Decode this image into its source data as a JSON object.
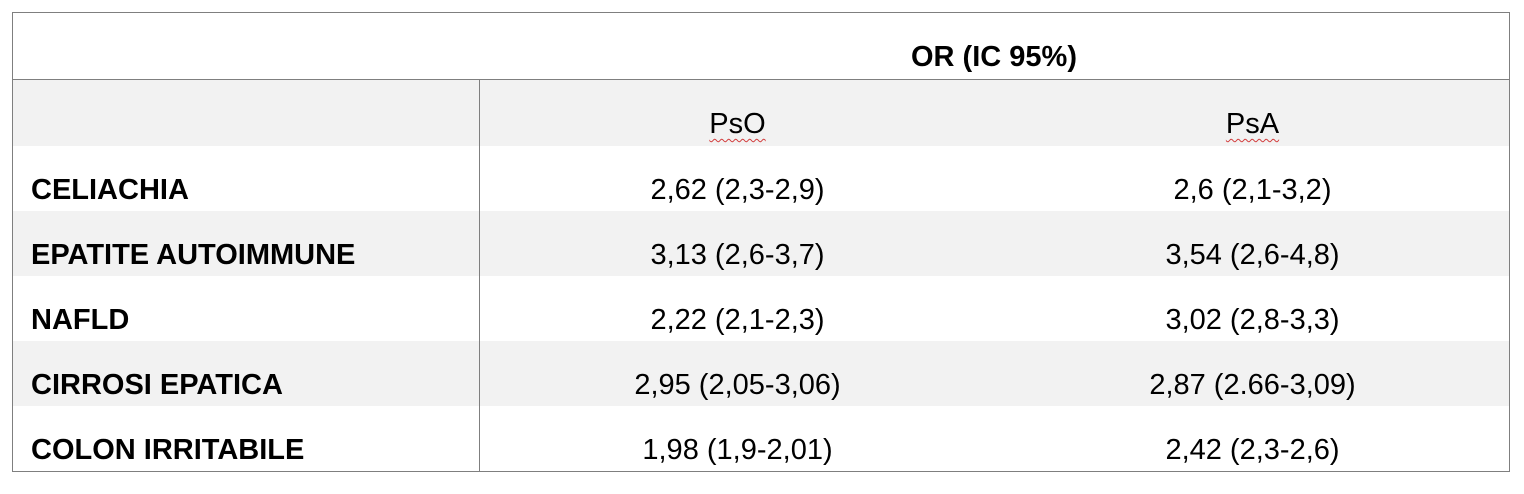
{
  "table": {
    "header": "OR (IC 95%)",
    "columns": [
      "PsO",
      "PsA"
    ],
    "rows": [
      {
        "label": "CELIACHIA",
        "pso": "2,62 (2,3-2,9)",
        "psa": "2,6 (2,1-3,2)"
      },
      {
        "label": "EPATITE AUTOIMMUNE",
        "pso": "3,13 (2,6-3,7)",
        "psa": "3,54 (2,6-4,8)"
      },
      {
        "label": "NAFLD",
        "pso": "2,22 (2,1-2,3)",
        "psa": "3,02 (2,8-3,3)"
      },
      {
        "label": "CIRROSI EPATICA",
        "pso": "2,95 (2,05-3,06)",
        "psa": "2,87 (2.66-3,09)"
      },
      {
        "label": "COLON IRRITABILE",
        "pso": "1,98 (1,9-2,01)",
        "psa": "2,42 (2,3-2,6)"
      }
    ]
  }
}
